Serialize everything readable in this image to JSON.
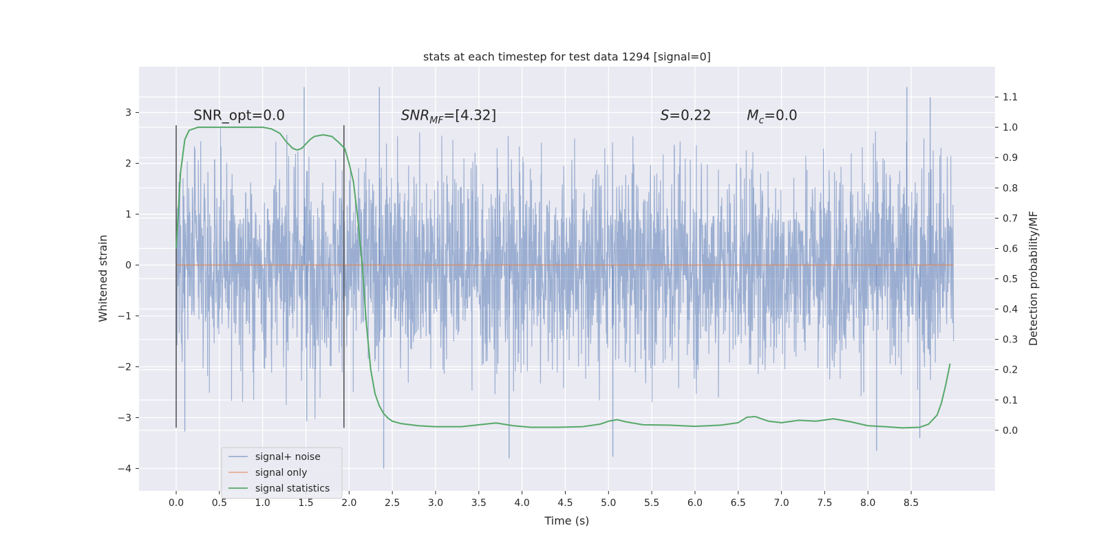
{
  "chart_data": {
    "type": "line",
    "title": "stats at each timestep for test data 1294 [signal=0]",
    "xlabel": "Time (s)",
    "ylabel": "Whitened strain",
    "y2label": "Detection probability/MF",
    "xlim": [
      -0.43,
      9.47
    ],
    "ylim": [
      -4.44,
      3.9
    ],
    "y2lim": [
      -0.2,
      1.2
    ],
    "x_ticks": [
      "0.0",
      "0.5",
      "1.0",
      "1.5",
      "2.0",
      "2.5",
      "3.0",
      "3.5",
      "4.0",
      "4.5",
      "5.0",
      "5.5",
      "6.0",
      "6.5",
      "7.0",
      "7.5",
      "8.0",
      "8.5"
    ],
    "x_tick_values": [
      0,
      0.5,
      1,
      1.5,
      2,
      2.5,
      3,
      3.5,
      4,
      4.5,
      5,
      5.5,
      6,
      6.5,
      7,
      7.5,
      8,
      8.5
    ],
    "y_ticks": [
      "−4",
      "−3",
      "−2",
      "−1",
      "0",
      "1",
      "2",
      "3"
    ],
    "y_tick_values": [
      -4,
      -3,
      -2,
      -1,
      0,
      1,
      2,
      3
    ],
    "y2_ticks": [
      "0.0",
      "0.1",
      "0.2",
      "0.3",
      "0.4",
      "0.5",
      "0.6",
      "0.7",
      "0.8",
      "0.9",
      "1.0",
      "1.1"
    ],
    "y2_tick_values": [
      0,
      0.1,
      0.2,
      0.3,
      0.4,
      0.5,
      0.6,
      0.7,
      0.8,
      0.9,
      1.0,
      1.1
    ],
    "grid": true,
    "legend_position": "lower-left",
    "vlines_x": [
      0.0,
      1.94
    ],
    "vlines_range": [
      -3.2,
      2.75
    ],
    "annotations": [
      {
        "prefix": "SNR_opt",
        "sub": "",
        "suffix": "=0.0",
        "italic": false,
        "x": 0.2,
        "y": 2.85
      },
      {
        "prefix": "SNR",
        "sub": "MF",
        "suffix": "=[4.32]",
        "italic": true,
        "x": 2.6,
        "y": 2.85
      },
      {
        "prefix": "S",
        "sub": "",
        "suffix": "=0.22",
        "italic": true,
        "x": 5.6,
        "y": 2.85
      },
      {
        "prefix": "M",
        "sub": "c",
        "suffix": "=0.0",
        "italic": true,
        "x": 6.6,
        "y": 2.85
      }
    ],
    "series": [
      {
        "name": "signal+ noise",
        "color": "#4c72b0",
        "alpha": 0.5,
        "axis": "left",
        "x_range": [
          0.0,
          8.99
        ],
        "noise_sigma": 0.95,
        "notable_peaks": [
          [
            1.48,
            3.57
          ],
          [
            1.51,
            -3.07
          ],
          [
            2.35,
            3.52
          ],
          [
            2.4,
            -4.0
          ],
          [
            0.1,
            -3.27
          ],
          [
            3.85,
            -3.8
          ],
          [
            5.05,
            -3.77
          ],
          [
            8.1,
            -3.65
          ],
          [
            8.45,
            3.55
          ],
          [
            8.6,
            -3.4
          ],
          [
            8.72,
            3.3
          ]
        ]
      },
      {
        "name": "signal only",
        "color": "#dd8452",
        "axis": "left",
        "x": [
          0.0,
          8.99
        ],
        "y": [
          0.0,
          0.0
        ]
      },
      {
        "name": "signal statistics",
        "color": "#55a868",
        "axis": "right",
        "x": [
          0.0,
          0.05,
          0.1,
          0.15,
          0.25,
          0.4,
          0.6,
          0.8,
          1.0,
          1.1,
          1.2,
          1.28,
          1.35,
          1.4,
          1.45,
          1.5,
          1.55,
          1.6,
          1.7,
          1.8,
          1.88,
          1.95,
          2.0,
          2.05,
          2.1,
          2.15,
          2.2,
          2.25,
          2.3,
          2.35,
          2.4,
          2.45,
          2.5,
          2.6,
          2.8,
          3.0,
          3.3,
          3.5,
          3.7,
          3.9,
          4.1,
          4.4,
          4.7,
          4.9,
          5.0,
          5.1,
          5.2,
          5.4,
          5.7,
          6.0,
          6.3,
          6.5,
          6.6,
          6.7,
          6.85,
          7.0,
          7.2,
          7.4,
          7.6,
          7.8,
          8.0,
          8.2,
          8.4,
          8.6,
          8.7,
          8.8,
          8.85,
          8.9,
          8.95
        ],
        "y": [
          0.6,
          0.85,
          0.96,
          0.99,
          1.0,
          1.0,
          1.0,
          1.0,
          1.0,
          0.995,
          0.98,
          0.95,
          0.93,
          0.925,
          0.93,
          0.945,
          0.96,
          0.97,
          0.975,
          0.97,
          0.95,
          0.93,
          0.88,
          0.82,
          0.7,
          0.55,
          0.35,
          0.2,
          0.12,
          0.08,
          0.055,
          0.04,
          0.03,
          0.022,
          0.015,
          0.012,
          0.012,
          0.018,
          0.024,
          0.015,
          0.01,
          0.01,
          0.012,
          0.02,
          0.03,
          0.035,
          0.028,
          0.018,
          0.017,
          0.013,
          0.017,
          0.025,
          0.043,
          0.045,
          0.03,
          0.025,
          0.033,
          0.03,
          0.038,
          0.028,
          0.015,
          0.012,
          0.008,
          0.01,
          0.02,
          0.05,
          0.09,
          0.15,
          0.22
        ]
      }
    ]
  }
}
